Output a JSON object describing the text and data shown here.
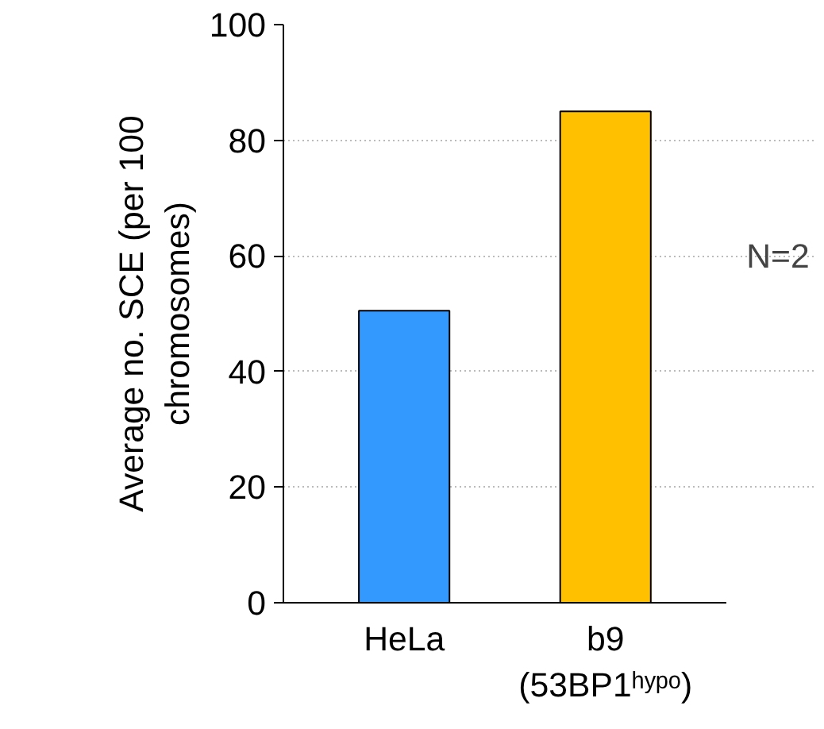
{
  "chart_data": {
    "type": "bar",
    "ylabel": "Average no. SCE (per 100\nchromosomes)",
    "categories": [
      "HeLa",
      "b9\n(53BP1ʰʸᵖᵒ)"
    ],
    "values": [
      50.5,
      85
    ],
    "colors": [
      "#3399ff",
      "#ffc000"
    ],
    "ylim": [
      0,
      100
    ],
    "yticks": [
      0,
      20,
      40,
      60,
      80,
      100
    ],
    "grid": "y",
    "annotations": [
      "N=2"
    ]
  }
}
